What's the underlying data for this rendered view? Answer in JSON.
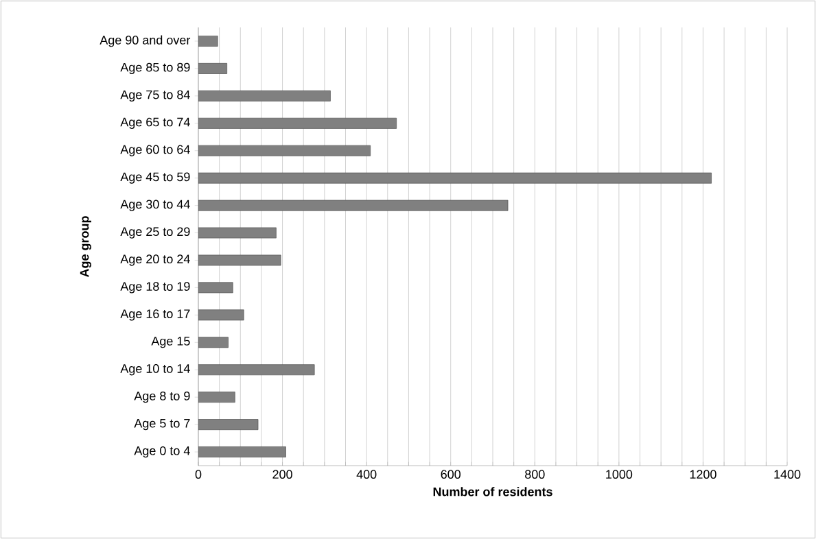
{
  "chart_data": {
    "type": "bar",
    "orientation": "horizontal",
    "xlabel": "Number of residents",
    "ylabel": "Age group",
    "categories": [
      "Age 90 and over",
      "Age 85 to 89",
      "Age 75 to 84",
      "Age 65 to 74",
      "Age 60 to 64",
      "Age 45 to 59",
      "Age 30 to 44",
      "Age 25 to 29",
      "Age 20 to 24",
      "Age 18 to 19",
      "Age 16 to 17",
      "Age 15",
      "Age 10 to 14",
      "Age 8 to 9",
      "Age 5 to 7",
      "Age 0 to 4"
    ],
    "values": [
      46,
      68,
      314,
      471,
      409,
      1220,
      736,
      185,
      196,
      82,
      108,
      71,
      276,
      87,
      142,
      208
    ],
    "color": "#808080",
    "xlim": [
      0,
      1400
    ],
    "xticks": [
      0,
      {
        "value": 50,
        "label": null
      },
      {
        "value": 100,
        "label": null
      },
      {
        "value": 150,
        "label": null
      },
      200,
      {
        "value": 250,
        "label": null
      },
      {
        "value": 300,
        "label": null
      },
      {
        "value": 350,
        "label": null
      },
      400,
      {
        "value": 450,
        "label": null
      },
      {
        "value": 500,
        "label": null
      },
      {
        "value": 550,
        "label": null
      },
      600,
      {
        "value": 650,
        "label": null
      },
      {
        "value": 700,
        "label": null
      },
      {
        "value": 750,
        "label": null
      },
      800,
      {
        "value": 850,
        "label": null
      },
      {
        "value": 900,
        "label": null
      },
      {
        "value": 950,
        "label": null
      },
      1000,
      {
        "value": 1050,
        "label": null
      },
      {
        "value": 1100,
        "label": null
      },
      {
        "value": 1150,
        "label": null
      },
      1200,
      {
        "value": 1250,
        "label": null
      },
      {
        "value": 1300,
        "label": null
      },
      {
        "value": 1350,
        "label": null
      },
      1400
    ],
    "grid": "x"
  }
}
